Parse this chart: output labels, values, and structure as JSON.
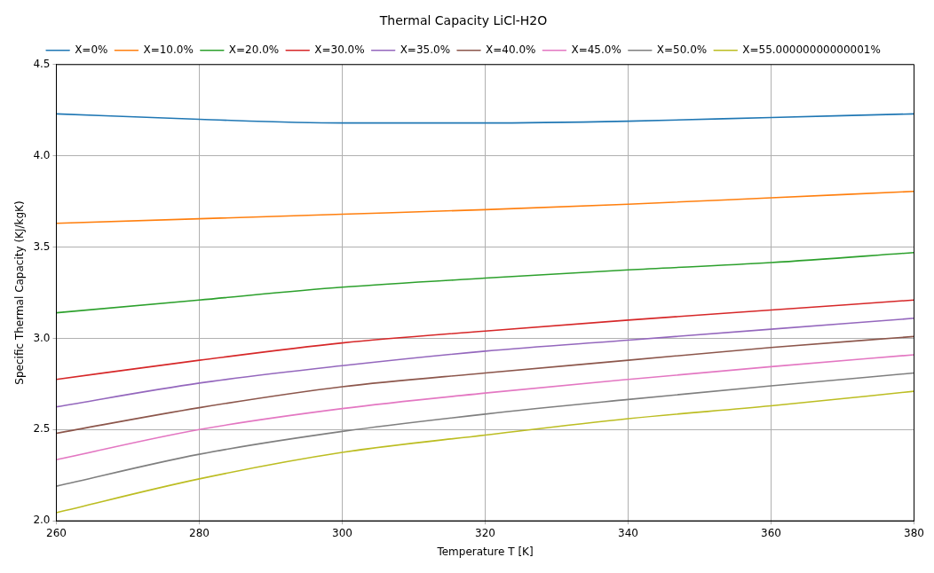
{
  "chart_data": {
    "type": "line",
    "title": "Thermal Capacity LiCl-H2O",
    "xlabel": "Temperature T [K]",
    "ylabel": "Specific Thermal Capacity (KJ/kgK)",
    "xlim": [
      260,
      380
    ],
    "ylim": [
      2.0,
      4.5
    ],
    "xticks": [
      260,
      280,
      300,
      320,
      340,
      360,
      380
    ],
    "yticks": [
      {
        "value": 2,
        "label": "2.0"
      },
      {
        "value": 2.5,
        "label": "2.5"
      },
      {
        "value": 3,
        "label": "3.0"
      },
      {
        "value": 3.5,
        "label": "3.5"
      },
      {
        "value": 4,
        "label": "4.0"
      },
      {
        "value": 4.5,
        "label": "4.5"
      }
    ],
    "grid": true,
    "legend": "top",
    "marker": "none",
    "line_style": "solid",
    "x": [
      260,
      280,
      300,
      320,
      340,
      360,
      380
    ],
    "series": [
      {
        "name": "X=0%",
        "color": "#1f77b4",
        "values": [
          4.23,
          4.2,
          4.18,
          4.18,
          4.19,
          4.21,
          4.23
        ]
      },
      {
        "name": "X=10.0%",
        "color": "#ff7f0e",
        "values": [
          3.63,
          3.655,
          3.68,
          3.705,
          3.735,
          3.77,
          3.805
        ]
      },
      {
        "name": "X=20.0%",
        "color": "#2ca02c",
        "values": [
          3.14,
          3.21,
          3.28,
          3.33,
          3.375,
          3.415,
          3.47
        ]
      },
      {
        "name": "X=30.0%",
        "color": "#d62728",
        "values": [
          2.775,
          2.88,
          2.975,
          3.04,
          3.1,
          3.155,
          3.21
        ]
      },
      {
        "name": "X=35.0%",
        "color": "#9467bd",
        "values": [
          2.625,
          2.755,
          2.85,
          2.93,
          2.99,
          3.05,
          3.11
        ]
      },
      {
        "name": "X=40.0%",
        "color": "#8c564b",
        "values": [
          2.48,
          2.62,
          2.735,
          2.81,
          2.88,
          2.95,
          3.01
        ]
      },
      {
        "name": "X=45.0%",
        "color": "#e377c2",
        "values": [
          2.335,
          2.5,
          2.615,
          2.7,
          2.775,
          2.845,
          2.91
        ]
      },
      {
        "name": "X=50.0%",
        "color": "#7f7f7f",
        "values": [
          2.19,
          2.365,
          2.49,
          2.585,
          2.665,
          2.74,
          2.81
        ]
      },
      {
        "name": "X=55.00000000000001%",
        "color": "#bcbd22",
        "values": [
          2.045,
          2.23,
          2.375,
          2.47,
          2.56,
          2.63,
          2.71
        ]
      }
    ]
  }
}
